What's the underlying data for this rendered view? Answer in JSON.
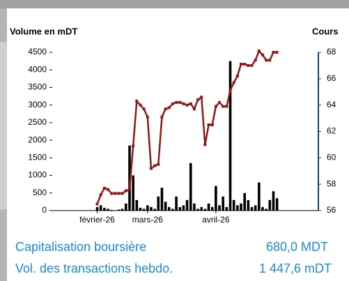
{
  "chart_data": {
    "type": "bar_line",
    "y_label": "Volume en mDT",
    "y2_label": "Cours",
    "categories": [
      null,
      null,
      null,
      null,
      null,
      null,
      null,
      null,
      null,
      null,
      null,
      null,
      "février-26",
      null,
      null,
      null,
      null,
      null,
      null,
      null,
      null,
      null,
      null,
      null,
      null,
      null,
      "mars-26",
      null,
      null,
      null,
      null,
      null,
      null,
      null,
      null,
      null,
      null,
      null,
      null,
      null,
      null,
      null,
      null,
      null,
      null,
      "avril-26",
      null,
      null,
      null,
      null,
      null,
      null,
      null,
      null,
      null,
      null,
      null,
      null,
      null,
      null,
      null,
      null,
      null,
      null,
      null,
      null,
      null,
      null,
      null,
      null,
      null,
      null,
      null,
      null
    ],
    "series": [
      {
        "name": "Volume",
        "type": "bar",
        "color": "#000000",
        "axis": "y",
        "values": [
          null,
          null,
          null,
          null,
          null,
          null,
          null,
          null,
          null,
          null,
          null,
          null,
          100,
          150,
          80,
          50,
          20,
          0,
          30,
          50,
          200,
          1850,
          1000,
          300,
          80,
          50,
          150,
          100,
          50,
          400,
          650,
          250,
          100,
          50,
          400,
          100,
          150,
          300,
          1350,
          200,
          50,
          100,
          50,
          200,
          100,
          700,
          150,
          400,
          100,
          4250,
          300,
          150,
          200,
          500,
          300,
          100,
          150,
          800,
          100,
          50,
          300,
          550,
          350,
          null,
          null,
          null,
          null,
          null,
          null,
          null,
          null,
          null,
          null,
          null
        ]
      },
      {
        "name": "Cours",
        "type": "line",
        "color": "#8b1a1a",
        "axis": "y2",
        "values": [
          null,
          null,
          null,
          null,
          null,
          null,
          null,
          null,
          null,
          null,
          null,
          null,
          56.5,
          57.2,
          57.7,
          57.6,
          57.3,
          57.3,
          57.3,
          57.3,
          57.5,
          57.6,
          60.9,
          64.3,
          64.0,
          63.7,
          63.1,
          59.2,
          59.4,
          59.5,
          63.1,
          63.7,
          63.8,
          64.1,
          64.2,
          64.2,
          64.1,
          64.0,
          64.1,
          63.7,
          64.4,
          64.6,
          61.0,
          62.5,
          62.5,
          63.9,
          64.2,
          63.9,
          63.9,
          65.1,
          65.7,
          66.2,
          67.1,
          67.1,
          67.0,
          67.0,
          67.4,
          68.1,
          67.8,
          67.4,
          67.4,
          68.0,
          68.0,
          null,
          null,
          null,
          null,
          null,
          null,
          null,
          null,
          null,
          null,
          null
        ]
      }
    ],
    "ylim": [
      0,
      4500
    ],
    "yticks": [
      0,
      500,
      1000,
      1500,
      2000,
      2500,
      3000,
      3500,
      4000,
      4500
    ],
    "y2lim": [
      56,
      68
    ],
    "y2ticks": [
      56,
      58,
      60,
      62,
      64,
      66,
      68
    ],
    "y2_axis_color": "#1a3a6b"
  },
  "summary": [
    {
      "label": "Capitalisation boursière",
      "value": "680,0 MDT"
    },
    {
      "label": "Vol. des transactions hebdo.",
      "value": "1 447,6 mDT"
    }
  ]
}
